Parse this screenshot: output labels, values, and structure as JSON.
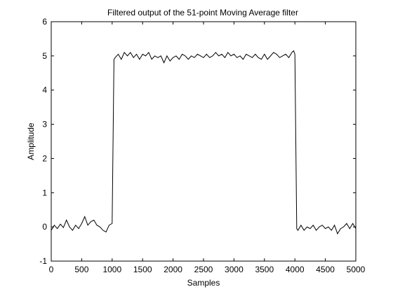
{
  "chart_data": {
    "type": "line",
    "title": "Filtered output of the 51-point Moving Average filter",
    "xlabel": "Samples",
    "ylabel": "Amplitude",
    "xlim": [
      0,
      5000
    ],
    "ylim": [
      -1,
      6
    ],
    "xticks": [
      0,
      500,
      1000,
      1500,
      2000,
      2500,
      3000,
      3500,
      4000,
      4500,
      5000
    ],
    "yticks": [
      -1,
      0,
      1,
      2,
      3,
      4,
      5,
      6
    ],
    "grid": false,
    "legend": "none",
    "line_color": "#000000",
    "series": [
      {
        "x": [
          0,
          50,
          100,
          150,
          200,
          250,
          300,
          350,
          400,
          450,
          500,
          550,
          600,
          650,
          700,
          750,
          800,
          850,
          900,
          950,
          1000,
          1030,
          1050,
          1100,
          1150,
          1200,
          1250,
          1300,
          1350,
          1400,
          1450,
          1500,
          1550,
          1600,
          1650,
          1700,
          1750,
          1800,
          1850,
          1900,
          1950,
          2000,
          2050,
          2100,
          2150,
          2200,
          2250,
          2300,
          2350,
          2400,
          2450,
          2500,
          2550,
          2600,
          2650,
          2700,
          2750,
          2800,
          2850,
          2900,
          2950,
          3000,
          3050,
          3100,
          3150,
          3200,
          3250,
          3300,
          3350,
          3400,
          3450,
          3500,
          3550,
          3600,
          3650,
          3700,
          3750,
          3800,
          3850,
          3900,
          3950,
          3980,
          4000,
          4030,
          4050,
          4100,
          4150,
          4200,
          4250,
          4300,
          4350,
          4400,
          4450,
          4500,
          4550,
          4600,
          4650,
          4700,
          4750,
          4800,
          4850,
          4900,
          4950,
          5000
        ],
        "y": [
          -0.1,
          0.05,
          -0.05,
          0.08,
          -0.02,
          0.2,
          0.0,
          -0.1,
          0.05,
          -0.05,
          0.1,
          0.3,
          0.05,
          0.15,
          0.2,
          0.05,
          0.0,
          -0.1,
          -0.15,
          0.05,
          0.1,
          4.9,
          4.95,
          5.05,
          4.9,
          5.1,
          5.0,
          5.1,
          4.95,
          5.05,
          4.9,
          5.05,
          5.0,
          5.1,
          4.9,
          5.0,
          4.95,
          5.0,
          4.8,
          5.0,
          4.85,
          4.95,
          5.0,
          4.9,
          5.05,
          5.0,
          4.9,
          5.0,
          4.95,
          5.05,
          5.0,
          4.95,
          5.05,
          4.95,
          5.0,
          5.1,
          5.0,
          5.05,
          4.95,
          5.1,
          5.0,
          5.05,
          4.95,
          5.0,
          4.9,
          5.05,
          5.0,
          4.95,
          5.05,
          4.95,
          4.9,
          5.05,
          4.9,
          5.0,
          5.1,
          5.05,
          4.95,
          5.0,
          5.05,
          4.95,
          5.1,
          5.15,
          5.05,
          -0.05,
          -0.1,
          0.05,
          -0.1,
          0.0,
          -0.05,
          0.05,
          -0.1,
          0.0,
          0.05,
          -0.05,
          0.0,
          -0.1,
          0.05,
          -0.2,
          -0.05,
          0.0,
          0.1,
          -0.05,
          0.1,
          -0.05
        ]
      }
    ]
  }
}
